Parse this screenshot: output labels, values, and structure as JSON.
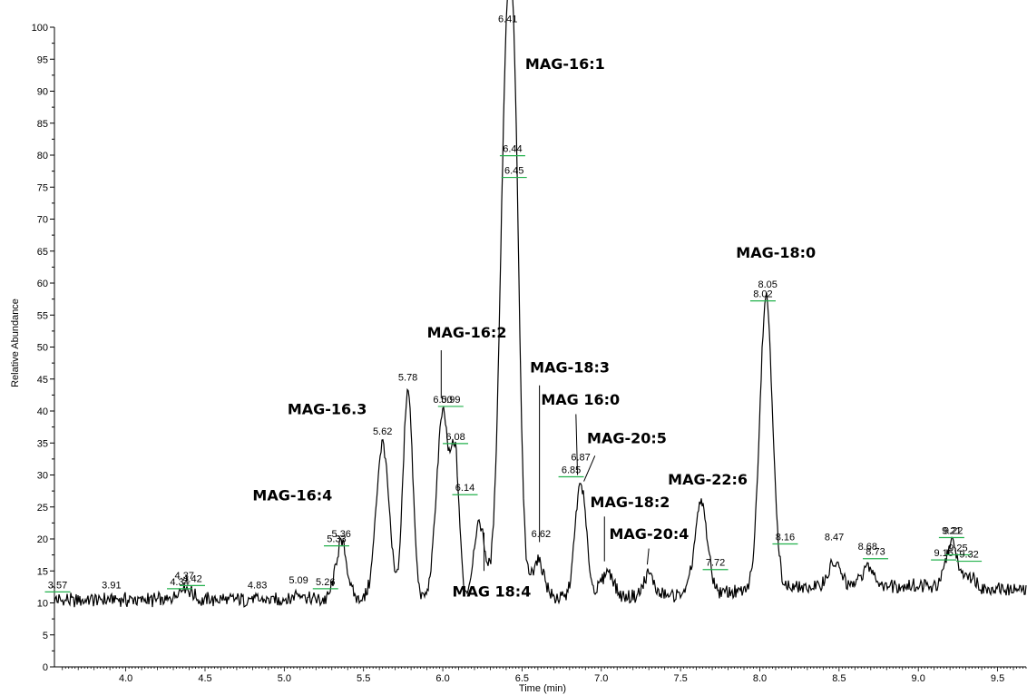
{
  "chart_data": {
    "type": "line",
    "title": "",
    "xlabel": "Time (min)",
    "ylabel": "Relative Abundance",
    "xlim": [
      3.55,
      9.68
    ],
    "ylim": [
      0,
      100
    ],
    "x_ticks": [
      "4.0",
      "4.5",
      "5.0",
      "5.5",
      "6.0",
      "6.5",
      "7.0",
      "7.5",
      "8.0",
      "8.5",
      "9.0",
      "9.5"
    ],
    "y_ticks": [
      "0",
      "5",
      "10",
      "15",
      "20",
      "25",
      "30",
      "35",
      "40",
      "45",
      "50",
      "55",
      "60",
      "65",
      "70",
      "75",
      "80",
      "85",
      "90",
      "95",
      "100"
    ],
    "grid": false,
    "baseline_level": 10.5,
    "peaks": [
      {
        "x": 4.37,
        "h": 2.0,
        "w": 0.04
      },
      {
        "x": 5.09,
        "h": 1.2,
        "w": 0.03
      },
      {
        "x": 5.36,
        "h": 9.0,
        "w": 0.035
      },
      {
        "x": 5.62,
        "h": 24.5,
        "w": 0.04
      },
      {
        "x": 5.78,
        "h": 33.0,
        "w": 0.03
      },
      {
        "x": 6.0,
        "h": 29.0,
        "w": 0.04
      },
      {
        "x": 6.08,
        "h": 20.0,
        "w": 0.025
      },
      {
        "x": 6.23,
        "h": 12.0,
        "w": 0.035
      },
      {
        "x": 6.41,
        "h": 88.0,
        "w": 0.045
      },
      {
        "x": 6.46,
        "h": 30.0,
        "w": 0.03
      },
      {
        "x": 6.6,
        "h": 6.0,
        "w": 0.04
      },
      {
        "x": 6.87,
        "h": 18.0,
        "w": 0.035
      },
      {
        "x": 7.04,
        "h": 4.0,
        "w": 0.04
      },
      {
        "x": 7.3,
        "h": 3.5,
        "w": 0.03
      },
      {
        "x": 7.63,
        "h": 14.0,
        "w": 0.04
      },
      {
        "x": 8.04,
        "h": 46.0,
        "w": 0.04
      },
      {
        "x": 8.47,
        "h": 3.5,
        "w": 0.04
      },
      {
        "x": 8.68,
        "h": 3.0,
        "w": 0.04
      },
      {
        "x": 9.21,
        "h": 7.0,
        "w": 0.035
      },
      {
        "x": 9.32,
        "h": 2.0,
        "w": 0.04
      }
    ],
    "peak_labels": [
      {
        "text": "3.57",
        "x": 3.57,
        "y": 12.0,
        "tick": true
      },
      {
        "text": "3.91",
        "x": 3.91,
        "y": 12.0,
        "tick": false
      },
      {
        "text": "4.34",
        "x": 4.34,
        "y": 12.5,
        "tick": true
      },
      {
        "text": "4.37",
        "x": 4.37,
        "y": 13.5,
        "tick": false
      },
      {
        "text": "4.42",
        "x": 4.42,
        "y": 13.0,
        "tick": true
      },
      {
        "text": "4.83",
        "x": 4.83,
        "y": 12.0,
        "tick": false
      },
      {
        "text": "5.09",
        "x": 5.09,
        "y": 12.8,
        "tick": false
      },
      {
        "text": "5.26",
        "x": 5.26,
        "y": 12.5,
        "tick": true
      },
      {
        "text": "5.33",
        "x": 5.33,
        "y": 19.2,
        "tick": true
      },
      {
        "text": "5.36",
        "x": 5.36,
        "y": 20.0,
        "tick": false
      },
      {
        "text": "5.62",
        "x": 5.62,
        "y": 36.0,
        "tick": false
      },
      {
        "text": "5.78",
        "x": 5.78,
        "y": 44.5,
        "tick": false
      },
      {
        "text": "6.00",
        "x": 6.0,
        "y": 41.0,
        "tick": false
      },
      {
        "text": "5.99",
        "x": 6.05,
        "y": 41.0,
        "tick": true
      },
      {
        "text": "6.08",
        "x": 6.08,
        "y": 35.2,
        "tick": true
      },
      {
        "text": "6.14",
        "x": 6.14,
        "y": 27.2,
        "tick": true
      },
      {
        "text": "6.41",
        "x": 6.41,
        "y": 100.5,
        "tick": false
      },
      {
        "text": "6.44",
        "x": 6.44,
        "y": 80.2,
        "tick": true
      },
      {
        "text": "6.45",
        "x": 6.45,
        "y": 76.8,
        "tick": true
      },
      {
        "text": "6.62",
        "x": 6.62,
        "y": 20.0,
        "tick": false
      },
      {
        "text": "6.85",
        "x": 6.81,
        "y": 30.0,
        "tick": true
      },
      {
        "text": "6.87",
        "x": 6.87,
        "y": 32.0,
        "tick": false
      },
      {
        "text": "7.72",
        "x": 7.72,
        "y": 15.5,
        "tick": true
      },
      {
        "text": "8.02",
        "x": 8.02,
        "y": 57.5,
        "tick": true
      },
      {
        "text": "8.05",
        "x": 8.05,
        "y": 59.0,
        "tick": false
      },
      {
        "text": "8.16",
        "x": 8.16,
        "y": 19.5,
        "tick": true
      },
      {
        "text": "8.47",
        "x": 8.47,
        "y": 19.5,
        "tick": false
      },
      {
        "text": "8.68",
        "x": 8.68,
        "y": 18.0,
        "tick": false
      },
      {
        "text": "8.73",
        "x": 8.73,
        "y": 17.2,
        "tick": true
      },
      {
        "text": "9.21",
        "x": 9.21,
        "y": 20.5,
        "tick": true
      },
      {
        "text": "9.22",
        "x": 9.22,
        "y": 20.5,
        "tick": false
      },
      {
        "text": "9.16",
        "x": 9.16,
        "y": 17.0,
        "tick": true
      },
      {
        "text": "9.25",
        "x": 9.25,
        "y": 17.8,
        "tick": true
      },
      {
        "text": "9.32",
        "x": 9.32,
        "y": 16.8,
        "tick": true
      }
    ],
    "annotations": [
      {
        "text": "MAG-16:1",
        "x": 6.52,
        "y": 93.5,
        "line": null
      },
      {
        "text": "MAG-18:0",
        "x": 7.85,
        "y": 64.0,
        "line": null
      },
      {
        "text": "MAG-16:2",
        "x": 5.9,
        "y": 51.5,
        "line": [
          5.99,
          49.5,
          5.99,
          42.0
        ]
      },
      {
        "text": "MAG-16.3",
        "x": 5.02,
        "y": 39.5,
        "line": null
      },
      {
        "text": "MAG-16:4",
        "x": 4.8,
        "y": 26.0,
        "line": null
      },
      {
        "text": "MAG-18:3",
        "x": 6.55,
        "y": 46.0,
        "line": [
          6.61,
          44.0,
          6.61,
          19.5
        ]
      },
      {
        "text": "MAG 16:0",
        "x": 6.62,
        "y": 41.0,
        "line": [
          6.84,
          39.5,
          6.85,
          30.0
        ]
      },
      {
        "text": "MAG-20:5",
        "x": 6.91,
        "y": 35.0,
        "line": [
          6.96,
          33.0,
          6.89,
          29.0
        ]
      },
      {
        "text": "MAG-18:2",
        "x": 6.93,
        "y": 25.0,
        "line": [
          7.02,
          23.5,
          7.02,
          16.5
        ]
      },
      {
        "text": "MAG-22:6",
        "x": 7.42,
        "y": 28.5,
        "line": null
      },
      {
        "text": "MAG-20:4",
        "x": 7.05,
        "y": 20.0,
        "line": [
          7.3,
          18.5,
          7.29,
          16.0
        ]
      },
      {
        "text": "MAG 18:4",
        "x": 6.06,
        "y": 11.0,
        "line": [
          6.26,
          15.0,
          6.26,
          21.0
        ]
      }
    ]
  }
}
